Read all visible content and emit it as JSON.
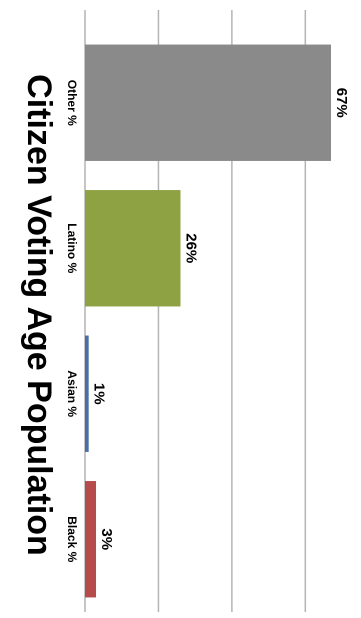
{
  "chart_data": {
    "type": "bar",
    "orientation": "horizontal",
    "title": "Citizen Voting Age Population",
    "categories": [
      "Other %",
      "Latino %",
      "Asian %",
      "Black %"
    ],
    "values": [
      67,
      26,
      1,
      3
    ],
    "value_labels": [
      "67%",
      "26%",
      "1%",
      "3%"
    ],
    "colors": [
      "#8a8a8a",
      "#8fa243",
      "#4a6fa5",
      "#b54b4b"
    ],
    "xlim": [
      0,
      80
    ],
    "grid": true,
    "legend": "none"
  }
}
